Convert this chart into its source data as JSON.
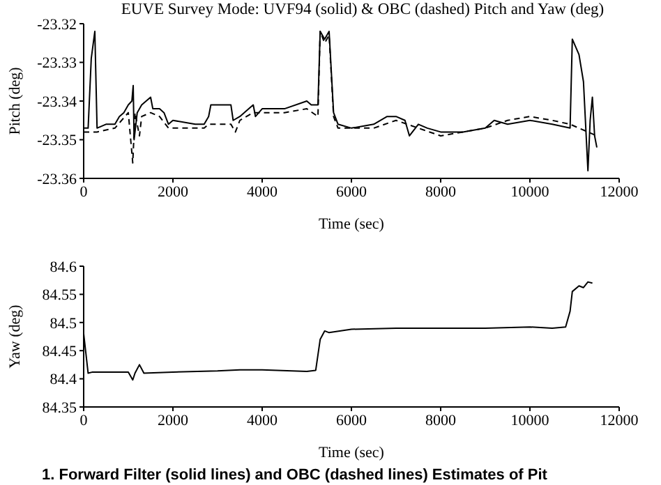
{
  "chart_data": [
    {
      "type": "line",
      "title": "EUVE Survey Mode:  UVF94 (solid) & OBC (dashed) Pitch and Yaw (deg)",
      "xlabel": "Time  (sec)",
      "ylabel": "Pitch  (deg)",
      "xlim": [
        0,
        12000
      ],
      "xticks": [
        0,
        2000,
        4000,
        6000,
        8000,
        10000,
        12000
      ],
      "ylim": [
        -23.36,
        -23.32
      ],
      "yticks": [
        -23.36,
        -23.35,
        -23.34,
        -23.33,
        -23.32
      ],
      "grid": false,
      "legend": false,
      "marker": "none",
      "series": [
        {
          "color": "#000000",
          "line_style": "solid",
          "x": [
            0,
            100,
            170,
            250,
            300,
            500,
            700,
            800,
            900,
            1000,
            1080,
            1110,
            1130,
            1200,
            1300,
            1400,
            1500,
            1550,
            1700,
            1800,
            1900,
            2000,
            2500,
            2700,
            2800,
            2850,
            3300,
            3350,
            3500,
            3700,
            3800,
            3850,
            4000,
            4500,
            5000,
            5100,
            5250,
            5300,
            5400,
            5500,
            5600,
            5700,
            6000,
            6500,
            6800,
            7000,
            7200,
            7300,
            7500,
            7700,
            8000,
            8500,
            9000,
            9200,
            9500,
            10000,
            10500,
            10900,
            10950,
            11100,
            11200,
            11300,
            11350,
            11400,
            11450,
            11500
          ],
          "values": [
            -23.347,
            -23.347,
            -23.329,
            -23.322,
            -23.347,
            -23.346,
            -23.346,
            -23.344,
            -23.343,
            -23.341,
            -23.34,
            -23.336,
            -23.35,
            -23.343,
            -23.341,
            -23.34,
            -23.339,
            -23.342,
            -23.342,
            -23.343,
            -23.346,
            -23.345,
            -23.346,
            -23.346,
            -23.344,
            -23.341,
            -23.341,
            -23.345,
            -23.344,
            -23.342,
            -23.341,
            -23.344,
            -23.342,
            -23.342,
            -23.34,
            -23.341,
            -23.341,
            -23.322,
            -23.324,
            -23.322,
            -23.343,
            -23.346,
            -23.347,
            -23.346,
            -23.344,
            -23.344,
            -23.345,
            -23.349,
            -23.346,
            -23.347,
            -23.348,
            -23.348,
            -23.347,
            -23.345,
            -23.346,
            -23.345,
            -23.346,
            -23.347,
            -23.324,
            -23.328,
            -23.335,
            -23.358,
            -23.345,
            -23.339,
            -23.349,
            -23.352
          ]
        },
        {
          "color": "#000000",
          "line_style": "dashed",
          "x": [
            0,
            300,
            700,
            1000,
            1100,
            1150,
            1250,
            1300,
            1500,
            1700,
            1900,
            2700,
            2800,
            3300,
            3400,
            3500,
            3800,
            4500,
            5000,
            5250,
            5300,
            5400,
            5500,
            5600,
            5700,
            6500,
            7000,
            7500,
            8000,
            9000,
            9500,
            10000,
            10500,
            10900,
            11300,
            11500
          ],
          "values": [
            -23.348,
            -23.348,
            -23.347,
            -23.343,
            -23.356,
            -23.343,
            -23.349,
            -23.344,
            -23.343,
            -23.344,
            -23.347,
            -23.347,
            -23.346,
            -23.346,
            -23.348,
            -23.345,
            -23.343,
            -23.343,
            -23.342,
            -23.344,
            -23.322,
            -23.325,
            -23.323,
            -23.344,
            -23.347,
            -23.347,
            -23.345,
            -23.347,
            -23.349,
            -23.347,
            -23.345,
            -23.344,
            -23.345,
            -23.346,
            -23.348,
            -23.349
          ]
        }
      ]
    },
    {
      "type": "line",
      "xlabel": "Time  (sec)",
      "ylabel": "Yaw  (deg)",
      "xlim": [
        0,
        12000
      ],
      "xticks": [
        0,
        2000,
        4000,
        6000,
        8000,
        10000,
        12000
      ],
      "ylim": [
        84.35,
        84.6
      ],
      "yticks": [
        84.35,
        84.4,
        84.45,
        84.5,
        84.55,
        84.6
      ],
      "grid": false,
      "legend": false,
      "marker": "none",
      "annotations": [
        "1.  Forward Filter (solid lines) and OBC (dashed lines) Estimates of Pit"
      ],
      "series": [
        {
          "color": "#000000",
          "line_style": "solid",
          "x": [
            0,
            100,
            200,
            1000,
            1100,
            1150,
            1250,
            1350,
            2000,
            3000,
            3500,
            4000,
            5000,
            5200,
            5300,
            5400,
            5500,
            6000,
            7000,
            8000,
            9000,
            10000,
            10500,
            10800,
            10900,
            10950,
            11100,
            11200,
            11300,
            11400
          ],
          "values": [
            84.48,
            84.41,
            84.412,
            84.412,
            84.398,
            84.41,
            84.425,
            84.41,
            84.412,
            84.414,
            84.416,
            84.416,
            84.413,
            84.415,
            84.47,
            84.485,
            84.482,
            84.488,
            84.49,
            84.49,
            84.49,
            84.492,
            84.49,
            84.492,
            84.52,
            84.555,
            84.565,
            84.562,
            84.572,
            84.57
          ]
        }
      ]
    }
  ]
}
